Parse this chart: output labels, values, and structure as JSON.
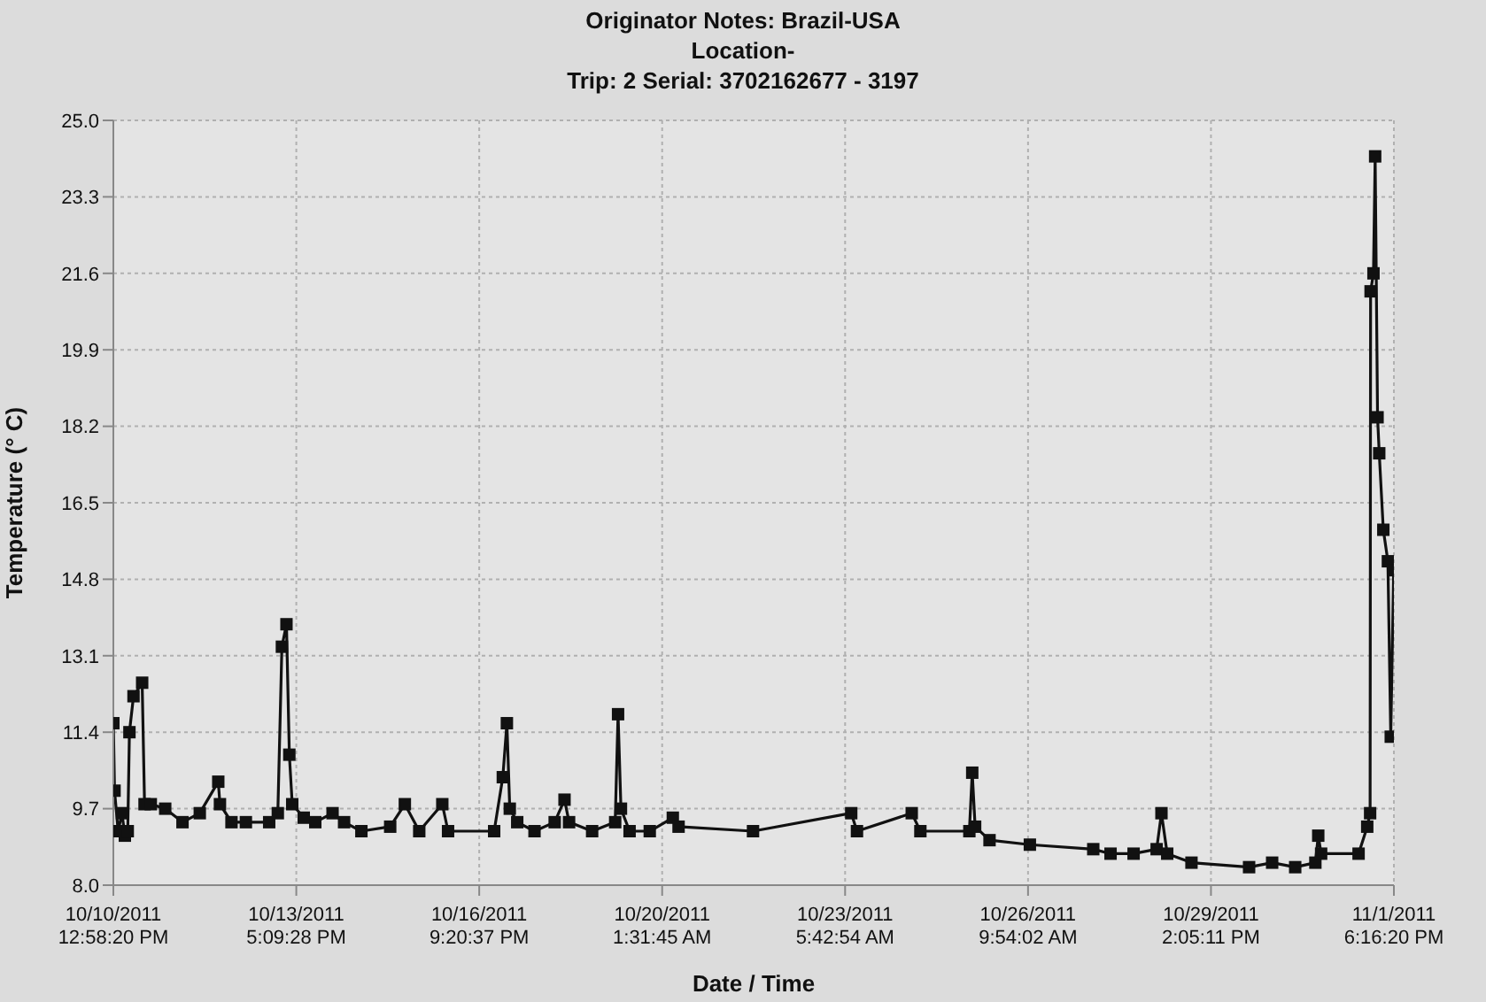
{
  "chart_data": {
    "type": "line",
    "title": "Originator Notes: Brazil-USA",
    "subtitle": "Location-\nTrip: 2  Serial: 3702162677 - 3197",
    "xlabel": "Date / Time",
    "ylabel": "Temperature (° C)",
    "x": [
      "2011-10-10T12:58:20",
      "2011-10-10T13:28",
      "2011-10-10T14:58",
      "2011-10-10T16:34",
      "2011-10-10T17:46",
      "2011-10-10T18:58",
      "2011-10-10T19:40",
      "2011-10-10T21:22",
      "2011-10-11T00:58",
      "2011-10-11T01:58",
      "2011-10-11T04:34",
      "2011-10-11T10:34",
      "2011-10-11T17:46",
      "2011-10-12T00:58",
      "2011-10-12T08:40",
      "2011-10-12T09:22",
      "2011-10-12T14:10",
      "2011-10-12T20:10",
      "2011-10-13T05:52",
      "2011-10-13T09:28",
      "2011-10-13T11:10",
      "2011-10-13T13:04",
      "2011-10-13T14:16",
      "2011-10-13T15:28",
      "2011-10-13T20:16",
      "2011-10-14T01:04",
      "2011-10-14T08:16",
      "2011-10-14T13:04",
      "2011-10-14T20:16",
      "2011-10-15T08:16",
      "2011-10-15T14:22",
      "2011-10-15T20:22",
      "2011-10-16T05:58",
      "2011-10-16T08:22",
      "2011-10-17T03:34",
      "2011-10-17T07:10",
      "2011-10-17T08:52",
      "2011-10-17T10:04",
      "2011-10-17T13:10",
      "2011-10-17T20:22",
      "2011-10-18T04:46",
      "2011-10-18T08:52",
      "2011-10-18T10:46",
      "2011-10-18T20:22",
      "2011-10-19T05:58",
      "2011-10-19T07:10",
      "2011-10-19T08:22",
      "2011-10-19T11:58",
      "2011-10-19T20:22",
      "2011-10-20T05:58",
      "2011-10-20T08:22",
      "2011-10-21T15:22",
      "2011-10-23T08:16",
      "2011-10-23T10:40",
      "2011-10-24T09:28",
      "2011-10-24T13:04",
      "2011-10-25T09:28",
      "2011-10-25T10:40",
      "2011-10-25T11:52",
      "2011-10-25T17:52",
      "2011-10-26T10:40",
      "2011-10-27T13:04",
      "2011-10-27T20:16",
      "2011-10-28T05:52",
      "2011-10-28T15:28",
      "2011-10-28T17:28",
      "2011-10-28T19:52",
      "2011-10-29T05:58",
      "2011-10-30T05:58",
      "2011-10-30T15:34",
      "2011-10-31T01:10",
      "2011-10-31T09:34",
      "2011-10-31T10:46",
      "2011-10-31T11:58",
      "2011-11-01T03:34",
      "2011-11-01T07:10",
      "2011-11-01T08:22",
      "2011-11-01T08:34",
      "2011-11-01T09:46",
      "2011-11-01T10:28",
      "2011-11-01T11:28",
      "2011-11-01T12:10",
      "2011-11-01T13:52",
      "2011-11-01T15:46",
      "2011-11-01T16:58",
      "2011-11-01T18:10"
    ],
    "series": [
      {
        "color": "#111111",
        "values": [
          11.6,
          10.1,
          9.2,
          9.6,
          9.1,
          9.2,
          11.4,
          12.2,
          12.5,
          9.8,
          9.8,
          9.7,
          9.4,
          9.6,
          10.3,
          9.8,
          9.4,
          9.4,
          9.4,
          9.6,
          13.3,
          13.8,
          10.9,
          9.8,
          9.5,
          9.4,
          9.6,
          9.4,
          9.2,
          9.3,
          9.8,
          9.2,
          9.8,
          9.2,
          9.2,
          10.4,
          11.6,
          9.7,
          9.4,
          9.2,
          9.4,
          9.9,
          9.4,
          9.2,
          9.4,
          11.8,
          9.7,
          9.2,
          9.2,
          9.5,
          9.3,
          9.2,
          9.6,
          9.2,
          9.6,
          9.2,
          9.2,
          10.5,
          9.3,
          9.0,
          8.9,
          8.8,
          8.7,
          8.7,
          8.8,
          9.6,
          8.7,
          8.5,
          8.4,
          8.5,
          8.4,
          8.5,
          9.1,
          8.7,
          8.7,
          9.3,
          9.6,
          21.2,
          21.6,
          24.2,
          18.4,
          17.6,
          15.9,
          15.2,
          11.3,
          15.0
        ]
      }
    ],
    "xlim": [
      "2011-10-10T12:58:20",
      "2011-11-01T18:16:20"
    ],
    "xticks": [
      {
        "value": "2011-10-10T12:58:20",
        "label": "10/10/2011 12:58:20 PM"
      },
      {
        "value": "2011-10-13T17:09:28",
        "label": "10/13/2011 5:09:28 PM"
      },
      {
        "value": "2011-10-16T21:20:37",
        "label": "10/16/2011 9:20:37 PM"
      },
      {
        "value": "2011-10-20T01:31:45",
        "label": "10/20/2011 1:31:45 AM"
      },
      {
        "value": "2011-10-23T05:42:54",
        "label": "10/23/2011 5:42:54 AM"
      },
      {
        "value": "2011-10-26T09:54:02",
        "label": "10/26/2011 9:54:02 AM"
      },
      {
        "value": "2011-10-29T14:05:11",
        "label": "10/29/2011 2:05:11 PM"
      },
      {
        "value": "2011-11-01T18:16:20",
        "label": "11/1/2011 6:16:20 PM"
      }
    ],
    "ylim": [
      8.0,
      25.0
    ],
    "yticks": [
      {
        "value": 8.0,
        "label": "8.0"
      },
      9.7,
      11.4,
      13.1,
      14.8,
      16.5,
      18.2,
      19.9,
      21.6,
      23.3,
      {
        "value": 25.0,
        "label": "25.0"
      }
    ],
    "grid": true,
    "marker": "square",
    "line_style": "solid",
    "legend": false
  }
}
